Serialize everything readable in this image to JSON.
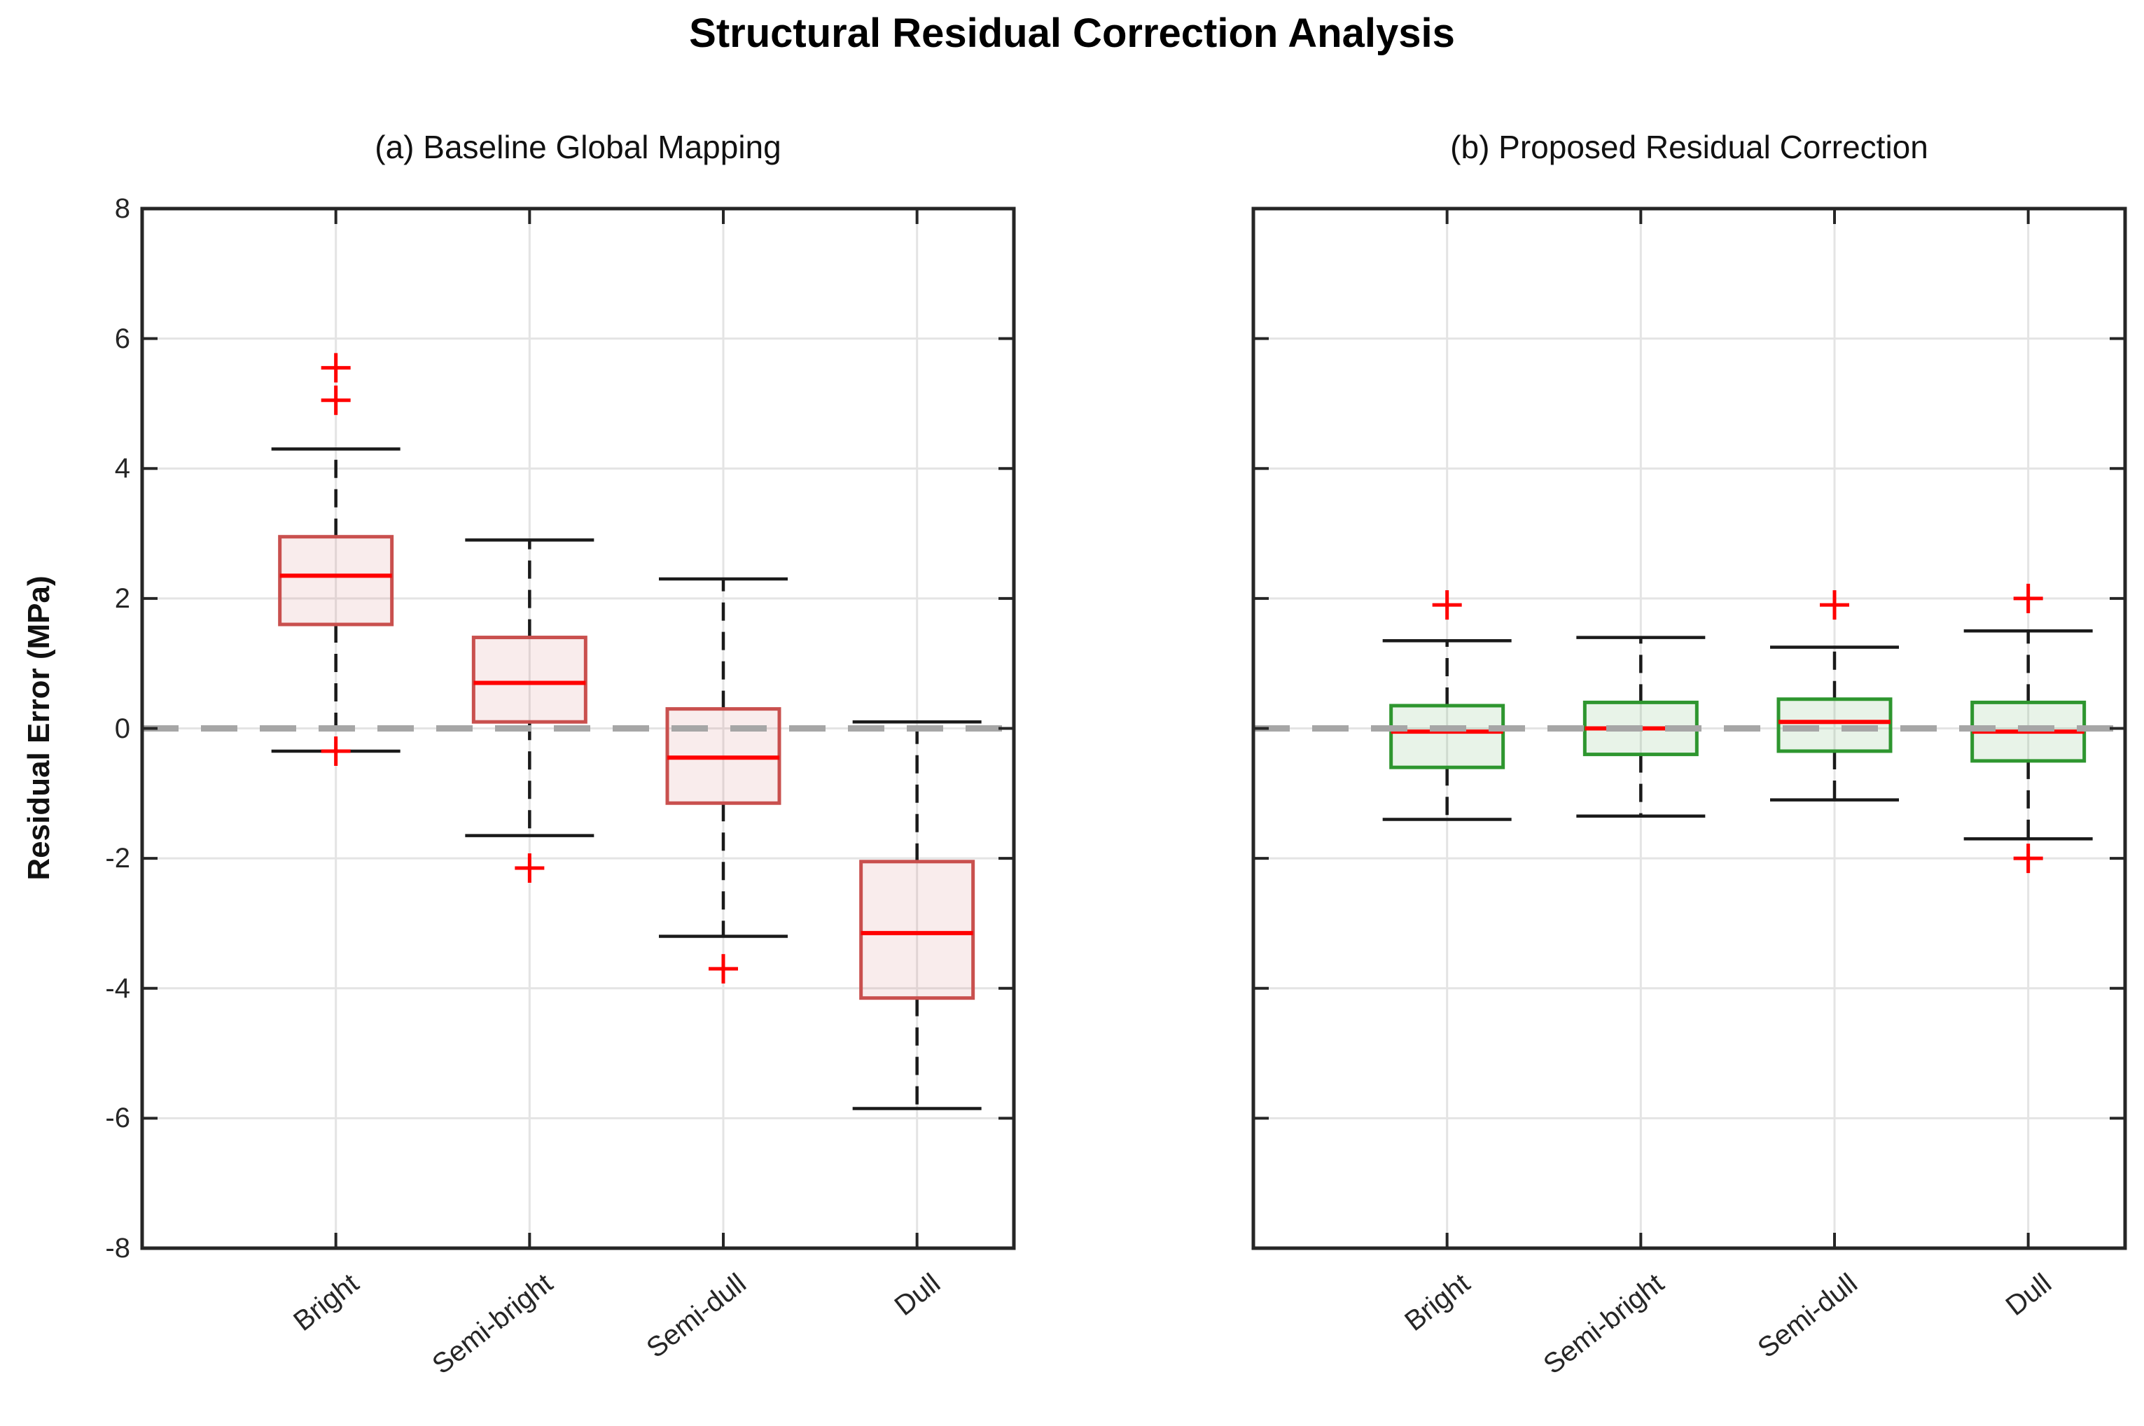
{
  "figure": {
    "title": "Structural Residual Correction Analysis",
    "ylabel": "Residual Error (MPa)",
    "background": "#ffffff"
  },
  "axes": {
    "ylim": [
      -8,
      8
    ],
    "yticks": [
      8,
      6,
      4,
      2,
      0,
      -2,
      -4,
      -6,
      -8
    ],
    "ytick_labels": [
      "8",
      "6",
      "4",
      "2",
      "0",
      "-2",
      "-4",
      "-6",
      "-8"
    ],
    "grid": true,
    "gridline_color": "#e4e4e4",
    "axis_color": "#262626",
    "zero_line": {
      "value": 0,
      "color": "#a6a6a6",
      "style": "dashed"
    }
  },
  "chart_data": [
    {
      "type": "boxplot",
      "title": "(a) Baseline Global Mapping",
      "categories": [
        "Bright",
        "Semi-bright",
        "Semi-dull",
        "Dull"
      ],
      "ylabel": "Residual Error (MPa)",
      "ylim": [
        -8,
        8
      ],
      "box_edge_color": "#c9504e",
      "box_fill_color": "#c9504e",
      "median_color": "#ff0000",
      "outlier_color": "#ff0000",
      "whisker_color": "#1a1a1a",
      "series": [
        {
          "category": "Bright",
          "whisker_low": -0.35,
          "q1": 1.6,
          "median": 2.35,
          "q3": 2.95,
          "whisker_high": 4.3,
          "outliers": [
            5.55,
            5.05,
            -0.35
          ]
        },
        {
          "category": "Semi-bright",
          "whisker_low": -1.65,
          "q1": 0.1,
          "median": 0.7,
          "q3": 1.4,
          "whisker_high": 2.9,
          "outliers": [
            -2.15
          ]
        },
        {
          "category": "Semi-dull",
          "whisker_low": -3.2,
          "q1": -1.15,
          "median": -0.45,
          "q3": 0.3,
          "whisker_high": 2.3,
          "outliers": [
            -3.7
          ]
        },
        {
          "category": "Dull",
          "whisker_low": -5.85,
          "q1": -4.15,
          "median": -3.15,
          "q3": -2.05,
          "whisker_high": 0.1,
          "outliers": []
        }
      ]
    },
    {
      "type": "boxplot",
      "title": "(b) Proposed Residual Correction",
      "categories": [
        "Bright",
        "Semi-bright",
        "Semi-dull",
        "Dull"
      ],
      "ylabel": "Residual Error (MPa)",
      "ylim": [
        -8,
        8
      ],
      "box_edge_color": "#2e962f",
      "box_fill_color": "#2e962f",
      "median_color": "#ff0000",
      "outlier_color": "#ff0000",
      "whisker_color": "#1a1a1a",
      "series": [
        {
          "category": "Bright",
          "whisker_low": -1.4,
          "q1": -0.6,
          "median": -0.05,
          "q3": 0.35,
          "whisker_high": 1.35,
          "outliers": [
            1.9
          ]
        },
        {
          "category": "Semi-bright",
          "whisker_low": -1.35,
          "q1": -0.4,
          "median": 0.0,
          "q3": 0.4,
          "whisker_high": 1.4,
          "outliers": []
        },
        {
          "category": "Semi-dull",
          "whisker_low": -1.1,
          "q1": -0.35,
          "median": 0.1,
          "q3": 0.45,
          "whisker_high": 1.25,
          "outliers": [
            1.9
          ]
        },
        {
          "category": "Dull",
          "whisker_low": -1.7,
          "q1": -0.5,
          "median": -0.05,
          "q3": 0.4,
          "whisker_high": 1.5,
          "outliers": [
            2.0,
            -2.0
          ]
        }
      ]
    }
  ]
}
